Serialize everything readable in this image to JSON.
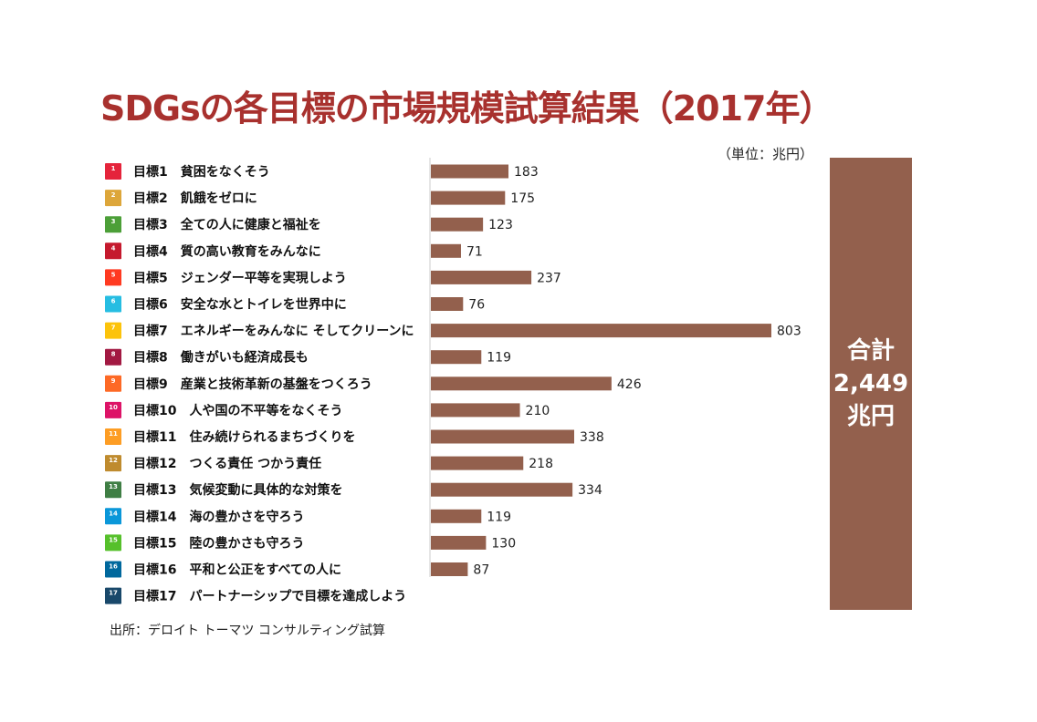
{
  "page": {
    "title": "SDGsの各目標の市場規模試算結果（2017年）",
    "unit_note": "（単位：兆円）",
    "source": "出所：デロイト トーマツ コンサルティング試算"
  },
  "total": {
    "label": "合計",
    "value": "2,449",
    "unit": "兆円"
  },
  "colors": {
    "bar": "#93604d",
    "title": "#a8312e"
  },
  "chart_data": {
    "type": "bar",
    "orientation": "horizontal",
    "categories": [
      "目標1　貧困をなくそう",
      "目標2　飢餓をゼロに",
      "目標3　全ての人に健康と福祉を",
      "目標4　質の高い教育をみんなに",
      "目標5　ジェンダー平等を実現しよう",
      "目標6　安全な水とトイレを世界中に",
      "目標7　エネルギーをみんなに そしてクリーンに",
      "目標8　働きがいも経済成長も",
      "目標9　産業と技術革新の基盤をつくろう",
      "目標10　人や国の不平等をなくそう",
      "目標11　住み続けられるまちづくりを",
      "目標12　つくる責任 つかう責任",
      "目標13　気候変動に具体的な対策を",
      "目標14　海の豊かさを守ろう",
      "目標15　陸の豊かさも守ろう",
      "目標16　平和と公正をすべての人に",
      "目標17　パートナーシップで目標を達成しよう"
    ],
    "values": [
      183,
      175,
      123,
      71,
      237,
      76,
      803,
      119,
      426,
      210,
      338,
      218,
      334,
      119,
      130,
      87,
      null
    ],
    "value_labels": [
      "183",
      "175",
      "123",
      "71",
      "237",
      "76",
      "803",
      "119",
      "426",
      "210",
      "338",
      "218",
      "334",
      "119",
      "130",
      "87",
      ""
    ],
    "icon_colors": [
      "#e5243b",
      "#dda63a",
      "#4c9f38",
      "#c5192d",
      "#ff3a21",
      "#26bde2",
      "#fcc30b",
      "#a21942",
      "#fd6925",
      "#dd1367",
      "#fd9d24",
      "#bf8b2e",
      "#3f7e44",
      "#0a97d9",
      "#56c02b",
      "#00689d",
      "#19486a"
    ],
    "xlim": [
      0,
      803
    ],
    "bar_color": "#93604d"
  }
}
